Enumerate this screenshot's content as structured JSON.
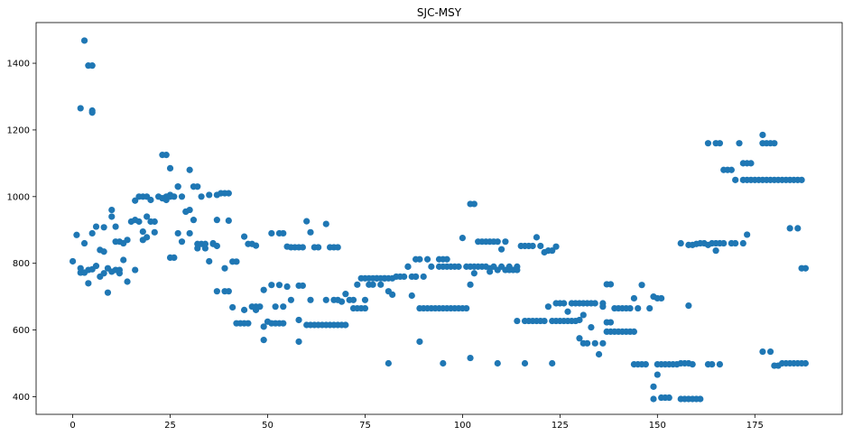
{
  "chart_data": {
    "type": "scatter",
    "title": "SJC-MSY",
    "xlabel": "",
    "ylabel": "",
    "xlim": [
      -9.4,
      197.4
    ],
    "ylim": [
      347,
      1522
    ],
    "xticks": [
      0,
      25,
      50,
      75,
      100,
      125,
      150,
      175
    ],
    "yticks": [
      400,
      600,
      800,
      1000,
      1200,
      1400
    ],
    "grid": false,
    "marker_color": "#1f77b4",
    "points": [
      [
        0,
        806
      ],
      [
        1,
        885
      ],
      [
        2,
        1265
      ],
      [
        2,
        772
      ],
      [
        2,
        785
      ],
      [
        3,
        1468
      ],
      [
        3,
        772
      ],
      [
        3,
        860
      ],
      [
        4,
        740
      ],
      [
        4,
        1393
      ],
      [
        4,
        780
      ],
      [
        5,
        1393
      ],
      [
        5,
        1258
      ],
      [
        5,
        1252
      ],
      [
        5,
        782
      ],
      [
        5,
        890
      ],
      [
        6,
        910
      ],
      [
        6,
        792
      ],
      [
        7,
        760
      ],
      [
        7,
        840
      ],
      [
        8,
        770
      ],
      [
        8,
        908
      ],
      [
        8,
        835
      ],
      [
        9,
        712
      ],
      [
        9,
        785
      ],
      [
        10,
        960
      ],
      [
        10,
        775
      ],
      [
        10,
        940
      ],
      [
        11,
        780
      ],
      [
        11,
        865
      ],
      [
        11,
        910
      ],
      [
        12,
        780
      ],
      [
        12,
        770
      ],
      [
        12,
        865
      ],
      [
        13,
        810
      ],
      [
        13,
        860
      ],
      [
        14,
        745
      ],
      [
        14,
        870
      ],
      [
        15,
        925
      ],
      [
        16,
        780
      ],
      [
        16,
        930
      ],
      [
        16,
        988
      ],
      [
        17,
        925
      ],
      [
        17,
        1000
      ],
      [
        18,
        1000
      ],
      [
        18,
        895
      ],
      [
        18,
        870
      ],
      [
        19,
        878
      ],
      [
        19,
        1000
      ],
      [
        19,
        940
      ],
      [
        20,
        990
      ],
      [
        20,
        925
      ],
      [
        21,
        893
      ],
      [
        21,
        925
      ],
      [
        22,
        1000
      ],
      [
        23,
        1125
      ],
      [
        23,
        995
      ],
      [
        24,
        1000
      ],
      [
        24,
        1125
      ],
      [
        24,
        990
      ],
      [
        25,
        1005
      ],
      [
        25,
        1000
      ],
      [
        25,
        1085
      ],
      [
        25,
        817
      ],
      [
        26,
        817
      ],
      [
        26,
        1000
      ],
      [
        27,
        1030
      ],
      [
        27,
        1030
      ],
      [
        27,
        890
      ],
      [
        28,
        865
      ],
      [
        28,
        1000
      ],
      [
        29,
        955
      ],
      [
        29,
        955
      ],
      [
        30,
        1080
      ],
      [
        30,
        890
      ],
      [
        30,
        960
      ],
      [
        31,
        930
      ],
      [
        31,
        1030
      ],
      [
        32,
        1030
      ],
      [
        32,
        858
      ],
      [
        32,
        845
      ],
      [
        33,
        1000
      ],
      [
        33,
        858
      ],
      [
        34,
        845
      ],
      [
        34,
        858
      ],
      [
        35,
        806
      ],
      [
        35,
        1005
      ],
      [
        36,
        860
      ],
      [
        36,
        858
      ],
      [
        37,
        1005
      ],
      [
        37,
        930
      ],
      [
        37,
        716
      ],
      [
        37,
        852
      ],
      [
        38,
        1010
      ],
      [
        39,
        1010
      ],
      [
        39,
        716
      ],
      [
        39,
        785
      ],
      [
        40,
        1010
      ],
      [
        40,
        716
      ],
      [
        40,
        928
      ],
      [
        41,
        668
      ],
      [
        41,
        805
      ],
      [
        42,
        620
      ],
      [
        42,
        805
      ],
      [
        43,
        620
      ],
      [
        44,
        620
      ],
      [
        44,
        880
      ],
      [
        44,
        660
      ],
      [
        45,
        620
      ],
      [
        45,
        858
      ],
      [
        46,
        670
      ],
      [
        46,
        858
      ],
      [
        47,
        670
      ],
      [
        47,
        660
      ],
      [
        47,
        853
      ],
      [
        48,
        670
      ],
      [
        49,
        720
      ],
      [
        49,
        570
      ],
      [
        49,
        610
      ],
      [
        50,
        625
      ],
      [
        51,
        735
      ],
      [
        51,
        890
      ],
      [
        51,
        620
      ],
      [
        52,
        620
      ],
      [
        52,
        670
      ],
      [
        53,
        620
      ],
      [
        53,
        890
      ],
      [
        53,
        735
      ],
      [
        54,
        890
      ],
      [
        54,
        670
      ],
      [
        54,
        620
      ],
      [
        55,
        730
      ],
      [
        55,
        850
      ],
      [
        56,
        690
      ],
      [
        56,
        848
      ],
      [
        57,
        848
      ],
      [
        58,
        565
      ],
      [
        58,
        630
      ],
      [
        58,
        848
      ],
      [
        58,
        733
      ],
      [
        59,
        848
      ],
      [
        59,
        733
      ],
      [
        60,
        926
      ],
      [
        60,
        615
      ],
      [
        61,
        690
      ],
      [
        61,
        893
      ],
      [
        61,
        615
      ],
      [
        62,
        615
      ],
      [
        62,
        848
      ],
      [
        63,
        848
      ],
      [
        63,
        615
      ],
      [
        64,
        615
      ],
      [
        65,
        918
      ],
      [
        65,
        690
      ],
      [
        65,
        615
      ],
      [
        66,
        848
      ],
      [
        66,
        615
      ],
      [
        67,
        848
      ],
      [
        67,
        690
      ],
      [
        67,
        615
      ],
      [
        68,
        848
      ],
      [
        68,
        690
      ],
      [
        68,
        615
      ],
      [
        69,
        685
      ],
      [
        69,
        615
      ],
      [
        70,
        708
      ],
      [
        70,
        615
      ],
      [
        71,
        690
      ],
      [
        72,
        690
      ],
      [
        72,
        665
      ],
      [
        73,
        736
      ],
      [
        73,
        665
      ],
      [
        74,
        755
      ],
      [
        74,
        665
      ],
      [
        75,
        755
      ],
      [
        75,
        690
      ],
      [
        75,
        665
      ],
      [
        76,
        755
      ],
      [
        76,
        736
      ],
      [
        77,
        755
      ],
      [
        77,
        736
      ],
      [
        78,
        755
      ],
      [
        78,
        755
      ],
      [
        79,
        755
      ],
      [
        79,
        736
      ],
      [
        80,
        755
      ],
      [
        80,
        755
      ],
      [
        81,
        755
      ],
      [
        81,
        716
      ],
      [
        81,
        500
      ],
      [
        82,
        755
      ],
      [
        82,
        706
      ],
      [
        83,
        760
      ],
      [
        84,
        760
      ],
      [
        85,
        760
      ],
      [
        86,
        790
      ],
      [
        86,
        790
      ],
      [
        87,
        760
      ],
      [
        87,
        703
      ],
      [
        88,
        812
      ],
      [
        88,
        760
      ],
      [
        88,
        760
      ],
      [
        89,
        812
      ],
      [
        89,
        665
      ],
      [
        89,
        565
      ],
      [
        90,
        760
      ],
      [
        90,
        665
      ],
      [
        91,
        812
      ],
      [
        91,
        665
      ],
      [
        92,
        790
      ],
      [
        92,
        665
      ],
      [
        93,
        665
      ],
      [
        94,
        812
      ],
      [
        94,
        790
      ],
      [
        94,
        665
      ],
      [
        95,
        812
      ],
      [
        95,
        790
      ],
      [
        95,
        665
      ],
      [
        95,
        500
      ],
      [
        96,
        812
      ],
      [
        96,
        790
      ],
      [
        96,
        665
      ],
      [
        97,
        790
      ],
      [
        97,
        665
      ],
      [
        98,
        790
      ],
      [
        98,
        665
      ],
      [
        99,
        790
      ],
      [
        99,
        665
      ],
      [
        100,
        876
      ],
      [
        100,
        665
      ],
      [
        101,
        790
      ],
      [
        101,
        665
      ],
      [
        102,
        790
      ],
      [
        102,
        978
      ],
      [
        102,
        736
      ],
      [
        102,
        516
      ],
      [
        103,
        978
      ],
      [
        103,
        790
      ],
      [
        103,
        770
      ],
      [
        104,
        865
      ],
      [
        104,
        790
      ],
      [
        105,
        865
      ],
      [
        105,
        790
      ],
      [
        106,
        865
      ],
      [
        106,
        790
      ],
      [
        107,
        865
      ],
      [
        107,
        785
      ],
      [
        107,
        775
      ],
      [
        108,
        865
      ],
      [
        108,
        790
      ],
      [
        109,
        865
      ],
      [
        109,
        780
      ],
      [
        109,
        500
      ],
      [
        110,
        842
      ],
      [
        110,
        790
      ],
      [
        111,
        865
      ],
      [
        111,
        780
      ],
      [
        112,
        790
      ],
      [
        112,
        780
      ],
      [
        113,
        780
      ],
      [
        114,
        790
      ],
      [
        114,
        780
      ],
      [
        114,
        627
      ],
      [
        115,
        852
      ],
      [
        116,
        852
      ],
      [
        116,
        627
      ],
      [
        116,
        500
      ],
      [
        117,
        852
      ],
      [
        117,
        627
      ],
      [
        118,
        852
      ],
      [
        118,
        627
      ],
      [
        119,
        878
      ],
      [
        119,
        627
      ],
      [
        120,
        852
      ],
      [
        120,
        627
      ],
      [
        121,
        833
      ],
      [
        121,
        627
      ],
      [
        122,
        838
      ],
      [
        122,
        670
      ],
      [
        123,
        838
      ],
      [
        123,
        627
      ],
      [
        123,
        500
      ],
      [
        124,
        850
      ],
      [
        124,
        627
      ],
      [
        124,
        680
      ],
      [
        125,
        627
      ],
      [
        125,
        680
      ],
      [
        126,
        627
      ],
      [
        126,
        680
      ],
      [
        127,
        627
      ],
      [
        127,
        655
      ],
      [
        128,
        680
      ],
      [
        128,
        627
      ],
      [
        129,
        680
      ],
      [
        129,
        627
      ],
      [
        130,
        680
      ],
      [
        130,
        630
      ],
      [
        130,
        575
      ],
      [
        131,
        680
      ],
      [
        131,
        560
      ],
      [
        131,
        645
      ],
      [
        132,
        680
      ],
      [
        132,
        560
      ],
      [
        133,
        680
      ],
      [
        133,
        608
      ],
      [
        134,
        680
      ],
      [
        134,
        560
      ],
      [
        135,
        527
      ],
      [
        136,
        680
      ],
      [
        136,
        560
      ],
      [
        136,
        670
      ],
      [
        137,
        737
      ],
      [
        137,
        623
      ],
      [
        137,
        595
      ],
      [
        138,
        737
      ],
      [
        138,
        623
      ],
      [
        138,
        595
      ],
      [
        139,
        665
      ],
      [
        139,
        595
      ],
      [
        140,
        665
      ],
      [
        140,
        595
      ],
      [
        141,
        665
      ],
      [
        141,
        595
      ],
      [
        142,
        665
      ],
      [
        142,
        595
      ],
      [
        143,
        665
      ],
      [
        143,
        595
      ],
      [
        144,
        695
      ],
      [
        144,
        595
      ],
      [
        144,
        497
      ],
      [
        145,
        665
      ],
      [
        145,
        497
      ],
      [
        146,
        497
      ],
      [
        146,
        735
      ],
      [
        147,
        497
      ],
      [
        148,
        665
      ],
      [
        149,
        393
      ],
      [
        149,
        430
      ],
      [
        149,
        700
      ],
      [
        150,
        695
      ],
      [
        150,
        497
      ],
      [
        150,
        466
      ],
      [
        151,
        397
      ],
      [
        151,
        497
      ],
      [
        151,
        695
      ],
      [
        152,
        397
      ],
      [
        152,
        497
      ],
      [
        153,
        397
      ],
      [
        153,
        497
      ],
      [
        154,
        497
      ],
      [
        155,
        497
      ],
      [
        156,
        860
      ],
      [
        156,
        393
      ],
      [
        156,
        500
      ],
      [
        157,
        393
      ],
      [
        157,
        500
      ],
      [
        158,
        855
      ],
      [
        158,
        393
      ],
      [
        158,
        500
      ],
      [
        158,
        673
      ],
      [
        159,
        855
      ],
      [
        159,
        393
      ],
      [
        159,
        497
      ],
      [
        160,
        858
      ],
      [
        160,
        393
      ],
      [
        161,
        860
      ],
      [
        161,
        393
      ],
      [
        162,
        860
      ],
      [
        163,
        855
      ],
      [
        163,
        1160
      ],
      [
        163,
        497
      ],
      [
        164,
        860
      ],
      [
        164,
        497
      ],
      [
        165,
        860
      ],
      [
        165,
        1160
      ],
      [
        165,
        838
      ],
      [
        166,
        860
      ],
      [
        166,
        1160
      ],
      [
        166,
        497
      ],
      [
        167,
        860
      ],
      [
        167,
        1080
      ],
      [
        168,
        1080
      ],
      [
        169,
        860
      ],
      [
        169,
        1080
      ],
      [
        170,
        1050
      ],
      [
        170,
        860
      ],
      [
        171,
        1160
      ],
      [
        172,
        860
      ],
      [
        172,
        1050
      ],
      [
        172,
        1100
      ],
      [
        173,
        886
      ],
      [
        173,
        1050
      ],
      [
        173,
        1100
      ],
      [
        174,
        1050
      ],
      [
        174,
        1100
      ],
      [
        175,
        1050
      ],
      [
        176,
        1050
      ],
      [
        177,
        1185
      ],
      [
        177,
        1160
      ],
      [
        177,
        1050
      ],
      [
        177,
        535
      ],
      [
        178,
        1160
      ],
      [
        178,
        1050
      ],
      [
        179,
        1160
      ],
      [
        179,
        1050
      ],
      [
        179,
        535
      ],
      [
        180,
        1160
      ],
      [
        180,
        1050
      ],
      [
        180,
        493
      ],
      [
        181,
        1050
      ],
      [
        181,
        493
      ],
      [
        182,
        1050
      ],
      [
        182,
        500
      ],
      [
        183,
        1050
      ],
      [
        183,
        500
      ],
      [
        184,
        905
      ],
      [
        184,
        1050
      ],
      [
        184,
        500
      ],
      [
        185,
        1050
      ],
      [
        185,
        500
      ],
      [
        186,
        905
      ],
      [
        186,
        1050
      ],
      [
        186,
        500
      ],
      [
        187,
        1050
      ],
      [
        187,
        785
      ],
      [
        187,
        500
      ],
      [
        188,
        785
      ],
      [
        188,
        500
      ]
    ]
  }
}
